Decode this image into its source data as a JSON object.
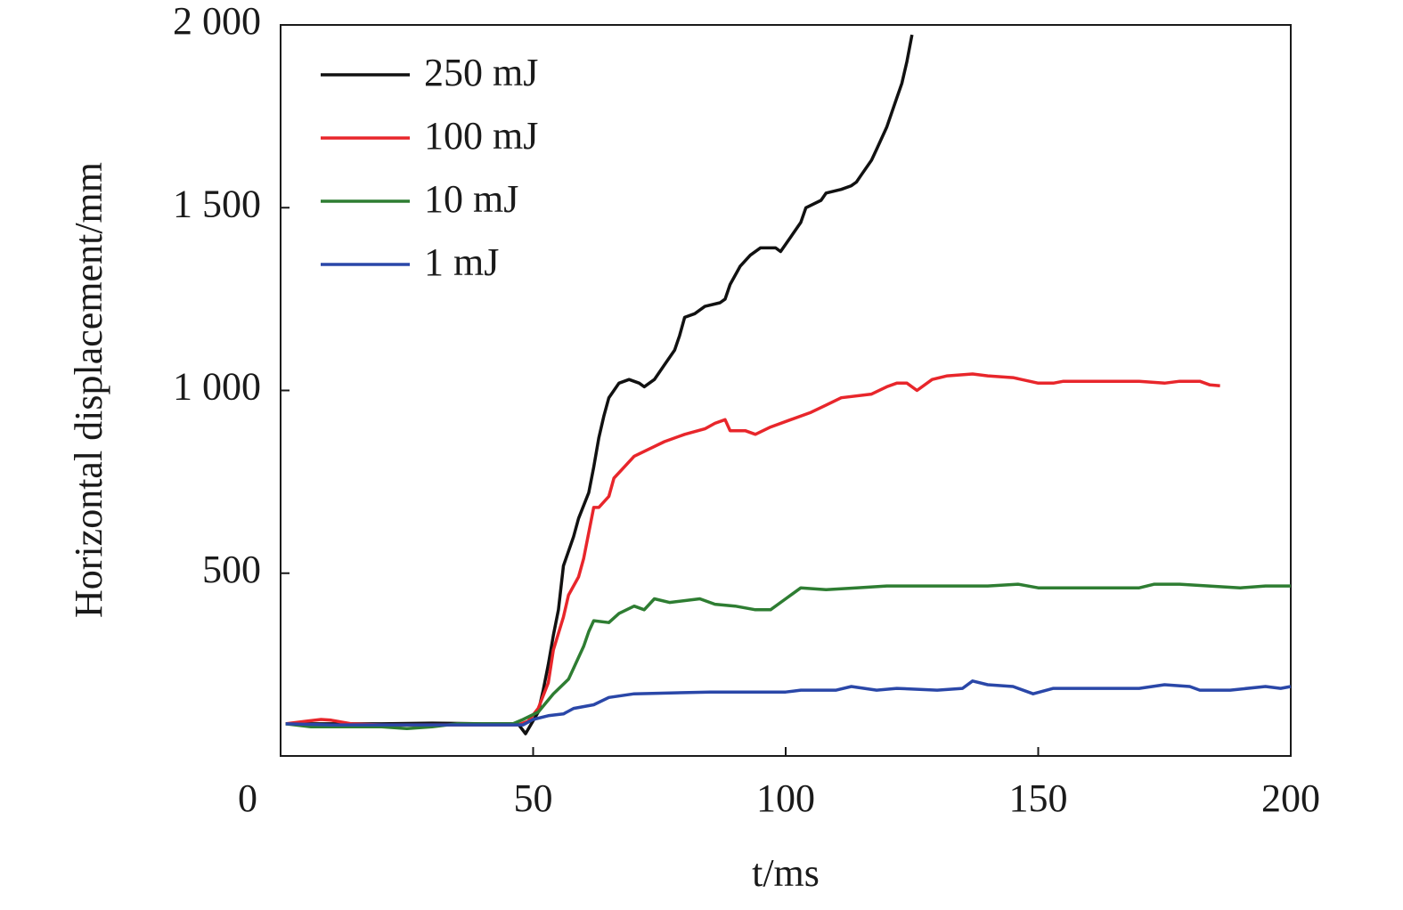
{
  "chart_data": {
    "type": "line",
    "xlabel": "t/ms",
    "ylabel": "Horizontal displacement/mm",
    "xlim": [
      0,
      200
    ],
    "xticks": [
      0,
      50,
      100,
      150,
      200
    ],
    "ylim": [
      0,
      2000
    ],
    "yticks": [
      500,
      {
        "value": 1000,
        "label": "1 000"
      },
      {
        "value": 1500,
        "label": "1 500"
      },
      {
        "value": 2000,
        "label": "2 000"
      }
    ],
    "legend": "upper left",
    "series": [
      {
        "name": "250 mJ",
        "color": "#111111",
        "x": [
          1,
          10,
          20,
          30,
          40,
          47,
          48.5,
          51,
          52,
          53,
          54,
          55,
          56,
          58,
          59,
          61,
          62,
          63,
          64,
          65,
          66,
          67,
          69,
          71,
          72,
          74,
          76,
          78,
          79,
          80,
          82,
          84,
          87,
          88,
          89,
          91,
          93,
          95,
          98,
          99,
          101,
          103,
          104,
          107,
          108,
          111,
          113,
          114,
          115,
          117,
          118,
          120,
          122,
          123,
          124,
          125
        ],
        "values": [
          88,
          88,
          88,
          90,
          88,
          88,
          61,
          120,
          180,
          250,
          330,
          400,
          520,
          600,
          650,
          720,
          790,
          870,
          930,
          980,
          1000,
          1020,
          1030,
          1020,
          1010,
          1030,
          1070,
          1110,
          1150,
          1200,
          1210,
          1230,
          1240,
          1250,
          1290,
          1340,
          1370,
          1390,
          1390,
          1380,
          1420,
          1460,
          1500,
          1520,
          1540,
          1550,
          1560,
          1570,
          1590,
          1630,
          1660,
          1720,
          1800,
          1840,
          1900,
          1973
        ]
      },
      {
        "name": "100 mJ",
        "color": "#e8262b",
        "x": [
          1,
          5,
          8,
          10,
          14,
          20,
          30,
          47,
          49,
          51,
          53,
          54,
          56,
          57,
          59,
          60,
          62,
          63,
          65,
          66,
          68,
          70,
          73,
          76,
          80,
          84,
          86,
          88,
          89,
          92,
          94,
          97,
          101,
          105,
          108,
          111,
          117,
          120,
          122,
          124,
          126,
          129,
          132,
          137,
          140,
          145,
          150,
          153,
          155,
          170,
          175,
          178,
          182,
          184,
          186
        ],
        "values": [
          88,
          95,
          100,
          98,
          88,
          85,
          85,
          85,
          95,
          130,
          200,
          290,
          380,
          440,
          490,
          540,
          680,
          680,
          710,
          760,
          790,
          820,
          840,
          860,
          880,
          895,
          910,
          920,
          890,
          890,
          880,
          900,
          920,
          940,
          960,
          980,
          990,
          1010,
          1020,
          1020,
          1000,
          1030,
          1040,
          1045,
          1040,
          1035,
          1020,
          1020,
          1025,
          1025,
          1020,
          1025,
          1025,
          1015,
          1013
        ]
      },
      {
        "name": "10 mJ",
        "color": "#2e7d32",
        "x": [
          1,
          6,
          20,
          25,
          30,
          35,
          46,
          48,
          51,
          54,
          57,
          58,
          60,
          61,
          62,
          65,
          67,
          70,
          72,
          74,
          77,
          83,
          86,
          90,
          94,
          97,
          100,
          103,
          108,
          114,
          120,
          140,
          146,
          150,
          170,
          173,
          178,
          190,
          195,
          200
        ],
        "values": [
          88,
          80,
          80,
          75,
          80,
          88,
          88,
          100,
          120,
          170,
          210,
          240,
          300,
          340,
          370,
          365,
          390,
          410,
          400,
          430,
          420,
          430,
          415,
          410,
          400,
          400,
          430,
          460,
          455,
          460,
          465,
          465,
          470,
          460,
          460,
          470,
          470,
          460,
          465,
          465
        ]
      },
      {
        "name": "1 mJ",
        "color": "#2a47a8",
        "x": [
          1,
          10,
          30,
          48,
          50,
          53,
          56,
          58,
          62,
          65,
          70,
          85,
          100,
          103,
          110,
          113,
          118,
          122,
          130,
          135,
          137,
          140,
          145,
          149,
          153,
          170,
          175,
          180,
          182,
          188,
          195,
          198,
          200
        ],
        "values": [
          88,
          85,
          85,
          85,
          100,
          110,
          115,
          130,
          140,
          160,
          170,
          175,
          175,
          180,
          180,
          190,
          180,
          185,
          180,
          185,
          205,
          195,
          190,
          170,
          185,
          185,
          195,
          190,
          180,
          180,
          190,
          185,
          190
        ]
      }
    ]
  }
}
